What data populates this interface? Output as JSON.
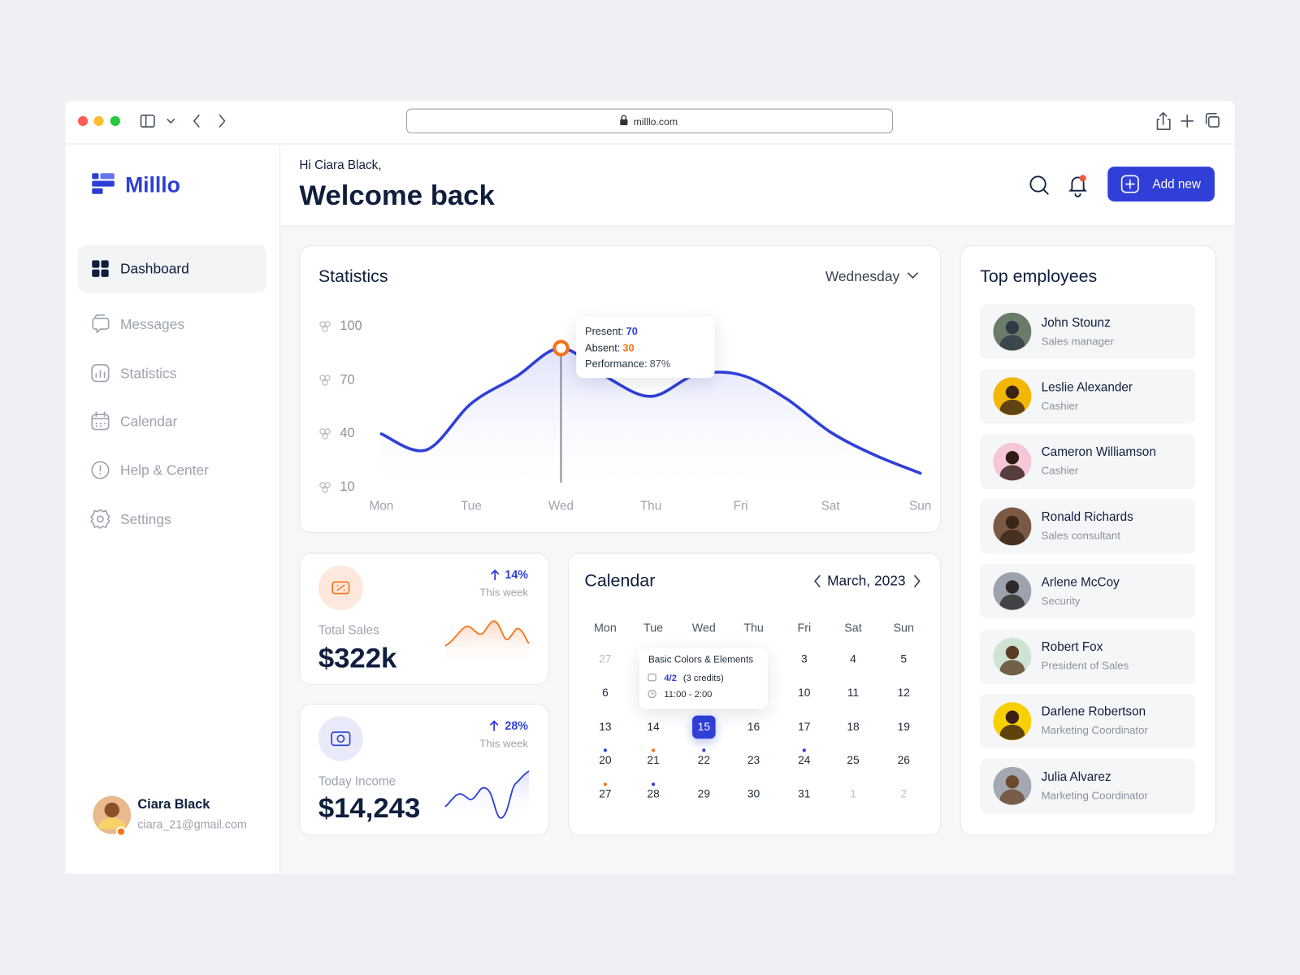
{
  "browser": {
    "url": "milllo.com"
  },
  "brand": "Milllo",
  "nav": [
    "Dashboard",
    "Messages",
    "Statistics",
    "Calendar",
    "Help & Center",
    "Settings"
  ],
  "user": {
    "name": "Ciara Black",
    "email": "ciara_21@gmail.com"
  },
  "header": {
    "greeting": "Hi Ciara Black,",
    "title": "Welcome back",
    "button": "Add new"
  },
  "chart_data": {
    "type": "line",
    "title": "Statistics",
    "period": "Wednesday",
    "categories": [
      "Mon",
      null,
      "Tue",
      null,
      "Wed",
      null,
      "Thu",
      null,
      "Fri",
      null,
      "Sat",
      null,
      "Sun"
    ],
    "values": [
      40,
      31,
      57,
      72,
      88,
      72,
      61,
      73,
      73,
      60,
      41,
      28,
      18
    ],
    "color": "#2f3fd8",
    "ylim": [
      10,
      100
    ],
    "yticks": [
      100,
      70,
      40,
      10
    ],
    "tooltip": [
      {
        "label": "Present:",
        "value": "70",
        "color": "#2f3fd8"
      },
      {
        "label": "Absent:",
        "value": "30",
        "color": "#f97316"
      },
      {
        "label": "Performance:",
        "value": "87%",
        "color": "#4b5563"
      }
    ]
  },
  "cards": [
    {
      "label": "Total Sales",
      "value": "$322k",
      "change": "14%",
      "period": "This week"
    },
    {
      "label": "Today Income",
      "value": "$14,243",
      "change": "28%",
      "period": "This week"
    }
  ],
  "calendar": {
    "title": "Calendar",
    "month": "March, 2023",
    "weekdays": [
      "Mon",
      "Tue",
      "Wed",
      "Thu",
      "Fri",
      "Sat",
      "Sun"
    ],
    "weeks": [
      [
        "27",
        null,
        null,
        null,
        "3",
        "4",
        "5"
      ],
      [
        "6",
        null,
        null,
        null,
        "10",
        "11",
        "12"
      ],
      [
        "13",
        "14",
        "15",
        "16",
        "17",
        "18",
        "19"
      ],
      [
        "20",
        "21",
        "22",
        "23",
        "24",
        "25",
        "26"
      ],
      [
        "27",
        "28",
        "29",
        "30",
        "31",
        "1",
        "2"
      ]
    ],
    "selected": "15",
    "dots": {
      "20": "#2f3fd8",
      "21": "#f97316",
      "22": "#2f3fd8",
      "24": "#2f3fd8",
      "27": "#f97316",
      "28": "#2f3fd8"
    },
    "event": {
      "title": "Basic Colors & Elements",
      "lessons": "4/2",
      "credits": "(3 credits)",
      "time": "11:00 - 2:00"
    }
  },
  "employees": {
    "title": "Top employees",
    "list": [
      {
        "name": "John Stounz",
        "role": "Sales manager"
      },
      {
        "name": "Leslie Alexander",
        "role": "Cashier"
      },
      {
        "name": "Cameron Williamson",
        "role": "Cashier"
      },
      {
        "name": "Ronald Richards",
        "role": "Sales consultant"
      },
      {
        "name": "Arlene McCoy",
        "role": "Security"
      },
      {
        "name": "Robert Fox",
        "role": "President of Sales"
      },
      {
        "name": "Darlene Robertson",
        "role": "Marketing Coordinator"
      },
      {
        "name": "Julia Alvarez",
        "role": "Marketing Coordinator"
      }
    ]
  }
}
